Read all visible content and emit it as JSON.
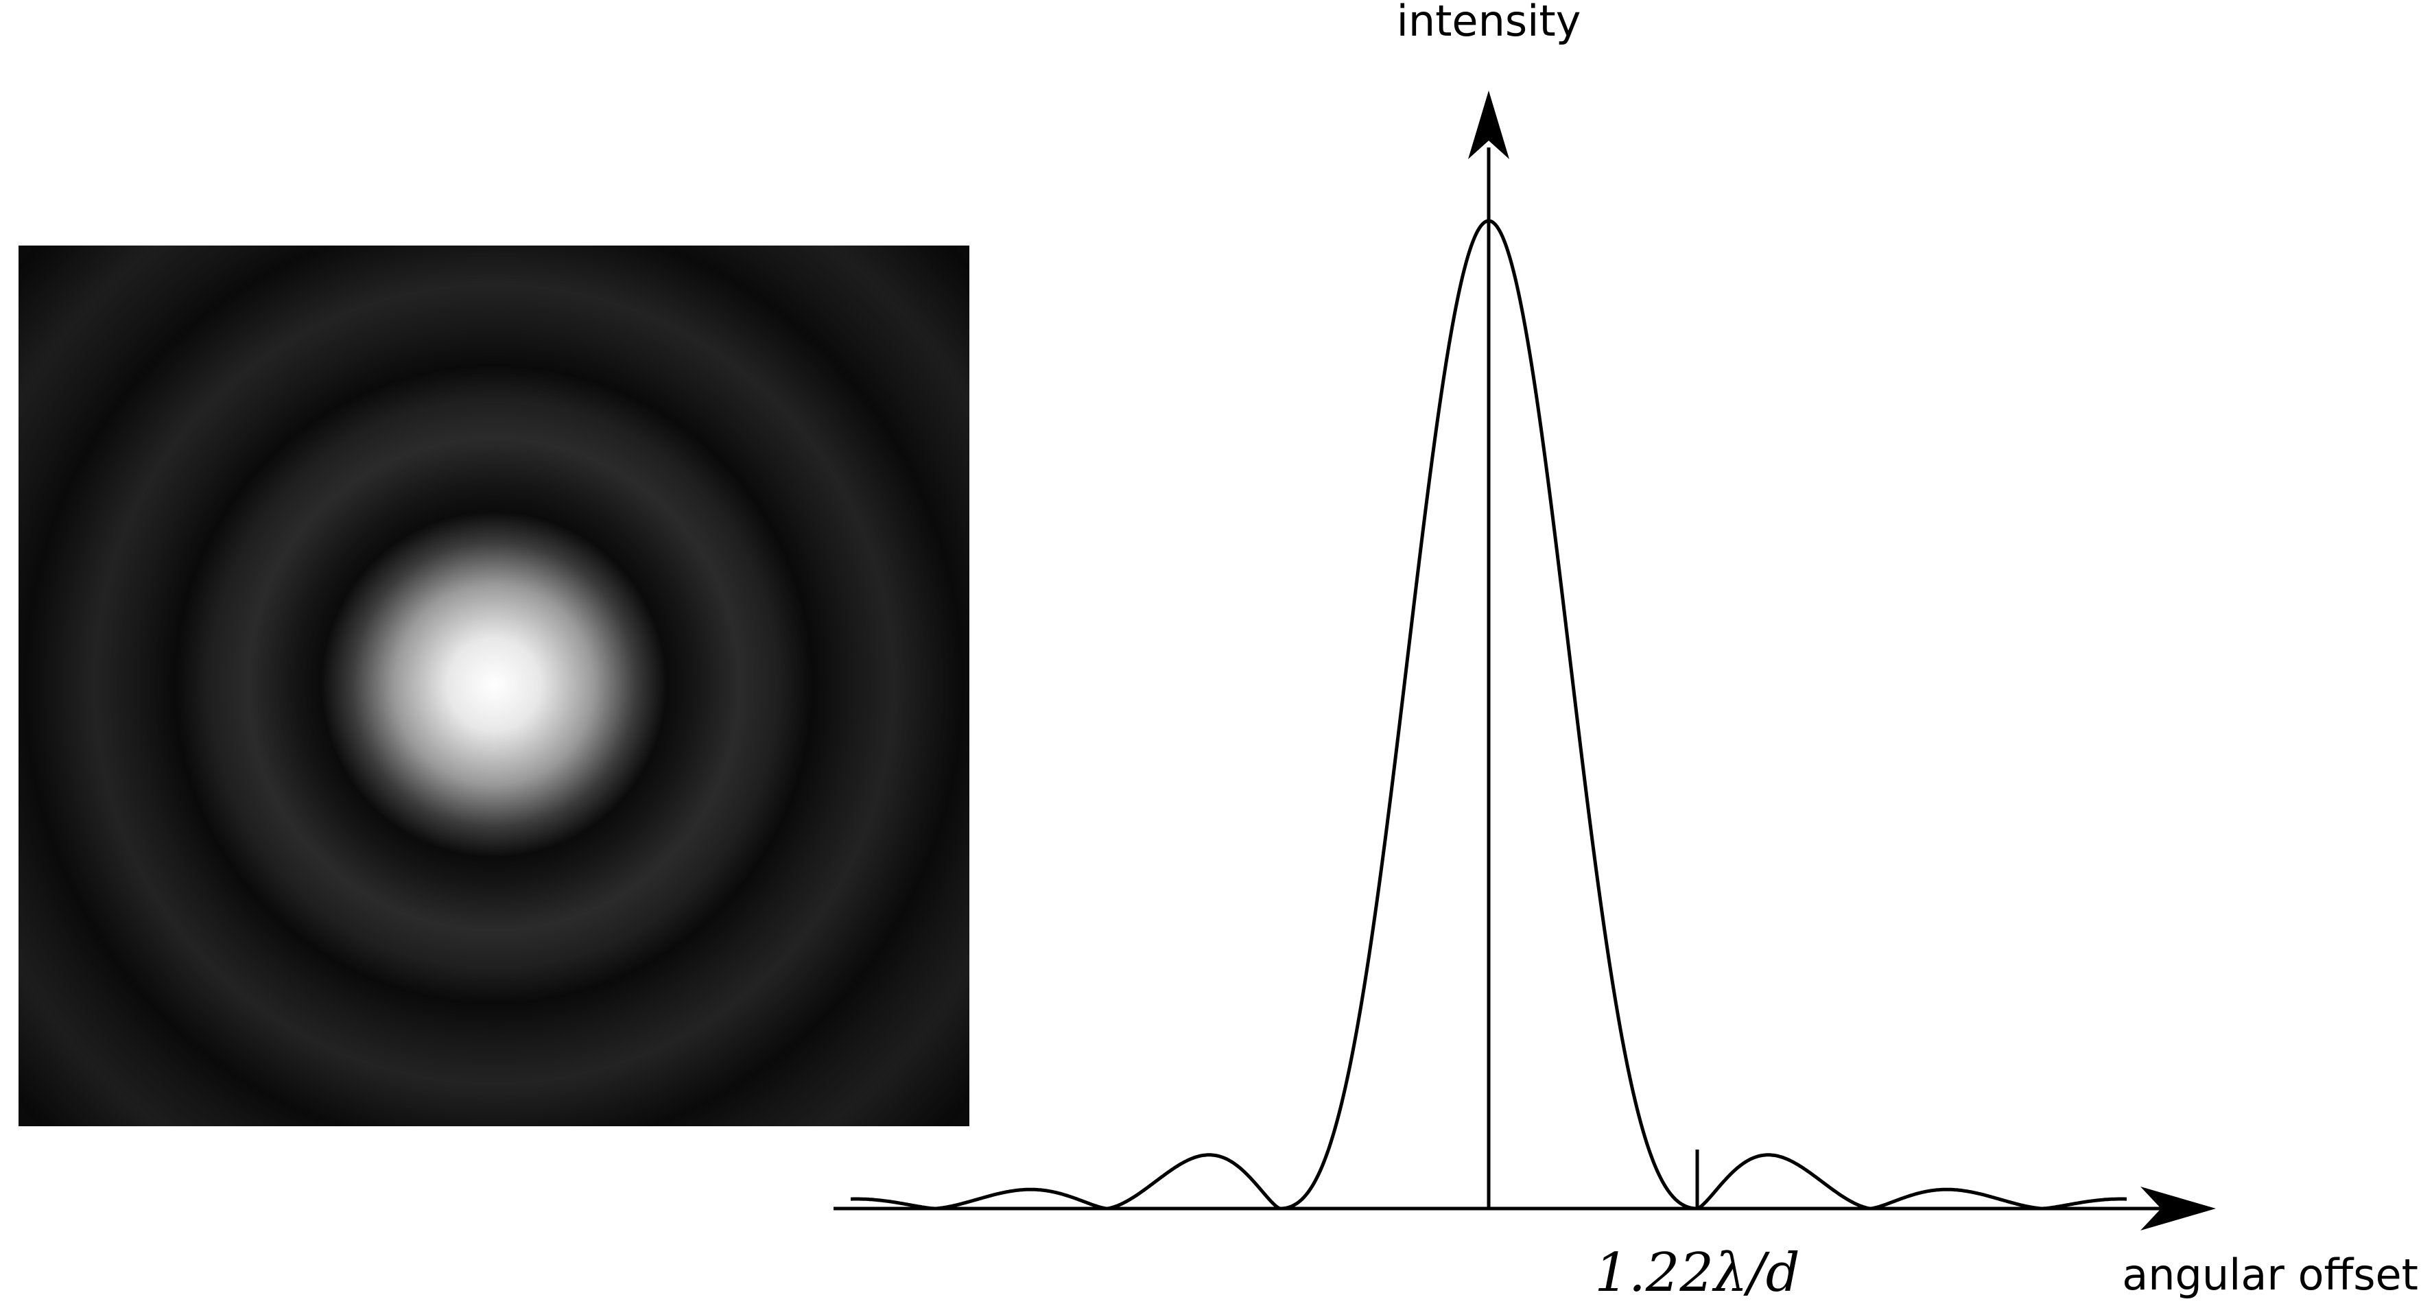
{
  "diagram": {
    "airy_image": {
      "description_icon": "airy-disk-pattern-icon"
    },
    "plot": {
      "y_axis_label": "intensity",
      "x_axis_label": "angular offset",
      "first_minimum_label": "1.22λ/d"
    }
  }
}
